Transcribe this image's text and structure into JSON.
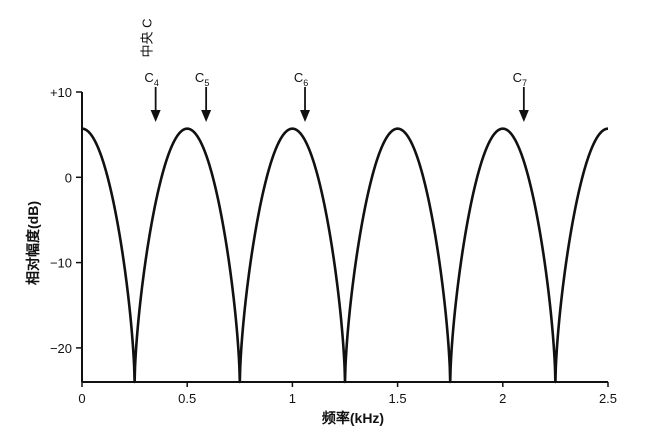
{
  "chart_data": {
    "type": "line",
    "xlabel": "频率(kHz)",
    "ylabel": "相对幅度(dB)",
    "xlim": [
      0,
      2.5
    ],
    "ylim": [
      -24,
      10
    ],
    "x_ticks": [
      0,
      0.5,
      1,
      1.5,
      2,
      2.5
    ],
    "x_tick_labels": [
      "0",
      "0.5",
      "1",
      "1.5",
      "2",
      "2.5"
    ],
    "y_ticks": [
      10,
      0,
      -10,
      -20
    ],
    "y_tick_labels": [
      "+10",
      "0",
      "−10",
      "−20"
    ],
    "grid": false,
    "series": [
      {
        "curve": "comb-filter",
        "peak_db": 5.7,
        "peaks_x": [
          0,
          0.5,
          1.0,
          1.5,
          2.0,
          2.5
        ],
        "notches_x": [
          0.25,
          0.75,
          1.25,
          1.75,
          2.25
        ],
        "notch_db": -24
      }
    ],
    "annotations": [
      {
        "label": "C",
        "sub": "4",
        "x": 0.35
      },
      {
        "label": "C",
        "sub": "5",
        "x": 0.59
      },
      {
        "label": "C",
        "sub": "6",
        "x": 1.06
      },
      {
        "label": "C",
        "sub": "7",
        "x": 2.1
      }
    ],
    "middle_c_label": "中央 C"
  }
}
